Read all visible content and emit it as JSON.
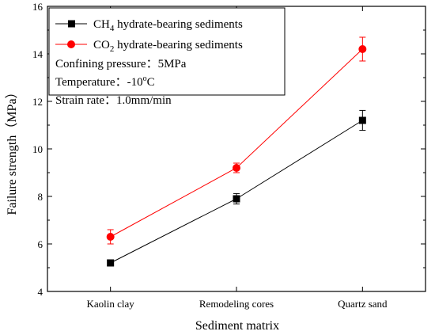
{
  "chart_data": {
    "type": "line",
    "title": "",
    "xlabel": "Sediment matrix",
    "ylabel": "Failure strength（MPa）",
    "categories": [
      "Kaolin clay",
      "Remodeling cores",
      "Quartz sand"
    ],
    "ylim": [
      4,
      16
    ],
    "yticks": [
      4,
      6,
      8,
      10,
      12,
      14,
      16
    ],
    "grid": false,
    "legend_position": "top-left",
    "series": [
      {
        "name_parts": [
          "CH",
          "4",
          " hydrate-bearing sediments"
        ],
        "marker": "square",
        "color": "#000000",
        "values": [
          5.2,
          7.9,
          11.2
        ],
        "errors": [
          0.12,
          0.22,
          0.42
        ]
      },
      {
        "name_parts": [
          "CO",
          "2",
          " hydrate-bearing sediments"
        ],
        "marker": "circle",
        "color": "#ff0000",
        "values": [
          6.3,
          9.2,
          14.2
        ],
        "errors": [
          0.3,
          0.2,
          0.5
        ]
      }
    ],
    "annotations": [
      {
        "text": "Confining pressure：5MPa"
      },
      {
        "parts": [
          "Temperature：-10",
          "o",
          "C"
        ]
      },
      {
        "text": "Strain rate：1.0mm/min"
      }
    ]
  }
}
